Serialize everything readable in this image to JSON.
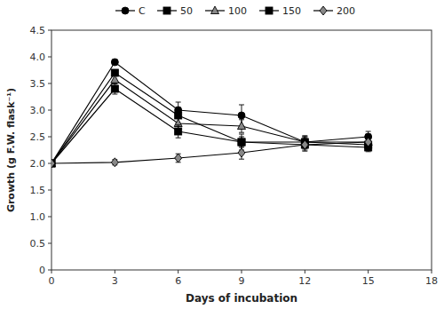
{
  "chart_data": {
    "type": "line",
    "xlabel": "Days of incubation",
    "ylabel": "Growth (g F.W. flask⁻¹)",
    "x": [
      0,
      3,
      6,
      9,
      12,
      15
    ],
    "series": [
      {
        "name": "C",
        "color": "#000000",
        "marker": "circle",
        "line_style": "solid",
        "values": [
          2.0,
          3.9,
          3.0,
          2.9,
          2.4,
          2.5
        ],
        "errors": [
          0.0,
          0.05,
          0.15,
          0.2,
          0.12,
          0.1
        ]
      },
      {
        "name": "50",
        "color": "#000000",
        "marker": "square",
        "line_style": "solid",
        "values": [
          2.0,
          3.7,
          2.9,
          2.4,
          2.35,
          2.3
        ],
        "errors": [
          0.0,
          0.05,
          0.15,
          0.15,
          0.1,
          0.08
        ]
      },
      {
        "name": "100",
        "color": "#000000",
        "marker": "triangle",
        "line_style": "solid",
        "values": [
          2.0,
          3.57,
          2.75,
          2.7,
          2.4,
          2.4
        ],
        "errors": [
          0.0,
          0.08,
          0.12,
          0.12,
          0.1,
          0.08
        ]
      },
      {
        "name": "150",
        "color": "#000000",
        "marker": "square",
        "line_style": "solid",
        "values": [
          2.0,
          3.4,
          2.6,
          2.4,
          2.4,
          2.35
        ],
        "errors": [
          0.0,
          0.1,
          0.12,
          0.1,
          0.1,
          0.08
        ]
      },
      {
        "name": "200",
        "color": "#000000",
        "marker": "diamond",
        "line_style": "solid",
        "values": [
          2.0,
          2.02,
          2.1,
          2.2,
          2.35,
          2.4
        ],
        "errors": [
          0.0,
          0.05,
          0.08,
          0.12,
          0.12,
          0.15
        ]
      }
    ],
    "xlim": [
      0,
      18
    ],
    "ylim": [
      0,
      4.5
    ],
    "xticks": [
      0,
      3,
      6,
      9,
      12,
      15,
      18
    ],
    "yticks": [
      0,
      0.5,
      {
        "value": 1,
        "label": "1.0"
      },
      1.5,
      {
        "value": 2,
        "label": "2.0"
      },
      2.5,
      {
        "value": 3,
        "label": "3.0"
      },
      3.5,
      {
        "value": 4,
        "label": "4.0"
      },
      4.5
    ],
    "grid": false,
    "legend": "top"
  }
}
